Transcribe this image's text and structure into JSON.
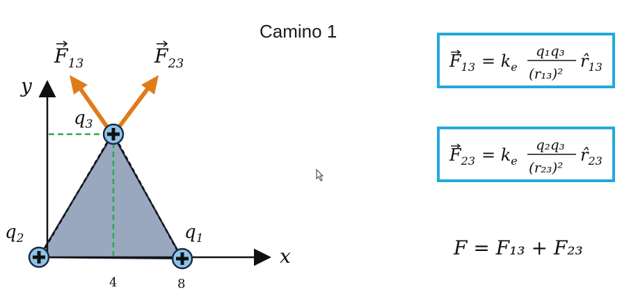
{
  "title": "Camino 1",
  "labels": {
    "y_axis": "y",
    "x_axis": "x",
    "q1": "q",
    "q1_sub": "1",
    "q2": "q",
    "q2_sub": "2",
    "q3": "q",
    "q3_sub": "3",
    "tick_4": "4",
    "tick_8": "8",
    "f13": "F",
    "f13_sub": "13",
    "f23": "F",
    "f23_sub": "23"
  },
  "formulas": {
    "f13_lhs": "F",
    "f13_lhs_sub": "13",
    "f13_eq": "= k",
    "f13_ke_sub": "e",
    "f13_num": "q₁q₃",
    "f13_den": "(r₁₃)²",
    "f13_rhat": "r̂",
    "f13_rhat_sub": "13",
    "f23_lhs": "F",
    "f23_lhs_sub": "23",
    "f23_eq": "= k",
    "f23_ke_sub": "e",
    "f23_num": "q₂q₃",
    "f23_den": "(r₂₃)²",
    "f23_rhat": "r̂",
    "f23_rhat_sub": "23",
    "total": "F = F₁₃ + F₂₃"
  },
  "colors": {
    "arrow": "#e07b1a",
    "triangle_fill": "#9aa8bf",
    "charge_fill": "#8fc3e8",
    "dashed_green": "#2aa84a",
    "box_border": "#22a8dc"
  }
}
